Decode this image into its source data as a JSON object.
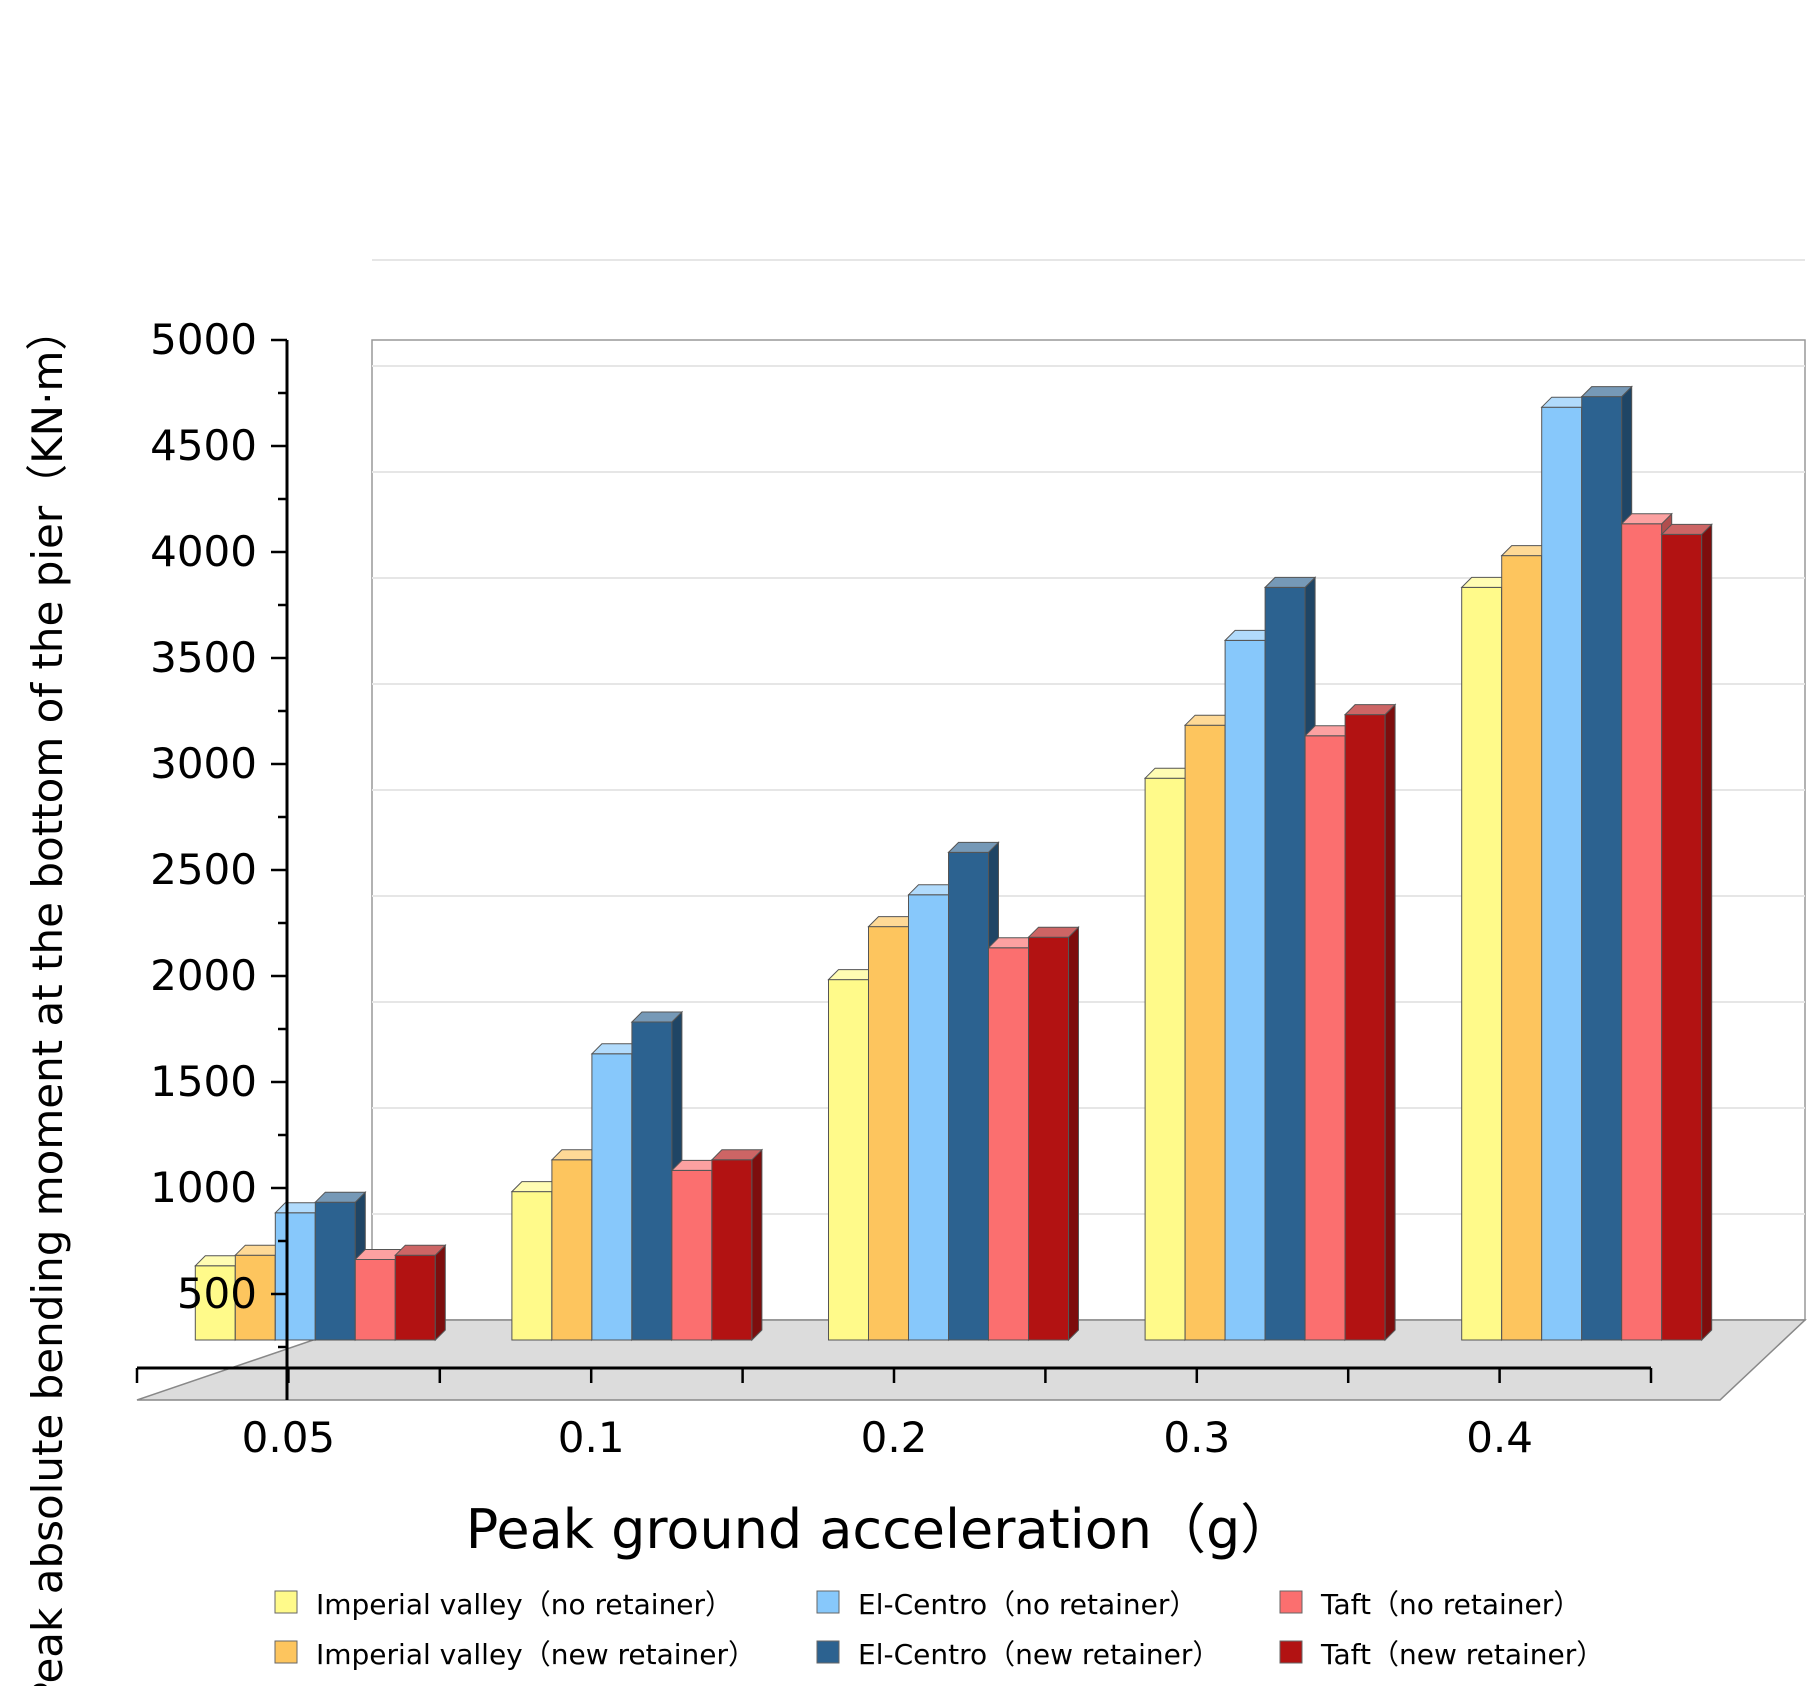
{
  "chart_data": {
    "type": "bar",
    "style": "3d-clustered",
    "title": "",
    "xlabel": "Peak ground acceleration（g）",
    "ylabel": "Peak absolute bending moment at the bottom of the pier（KN·m）",
    "categories": [
      "0.05",
      "0.1",
      "0.2",
      "0.3",
      "0.4"
    ],
    "ylim": [
      0,
      5000
    ],
    "yticks": [
      500,
      1000,
      1500,
      2000,
      2500,
      3000,
      3500,
      4000,
      4500,
      5000
    ],
    "grid": true,
    "legend_position": "bottom",
    "series": [
      {
        "name": "Imperial valley（no retainer）",
        "color": "#FFFA8A",
        "values": [
          350,
          700,
          1700,
          2650,
          3550
        ]
      },
      {
        "name": "Imperial valley（new retainer）",
        "color": "#FDC55E",
        "values": [
          400,
          850,
          1950,
          2900,
          3700
        ]
      },
      {
        "name": "El-Centro（no retainer）",
        "color": "#87C8FB",
        "values": [
          600,
          1350,
          2100,
          3300,
          4400
        ]
      },
      {
        "name": "El-Centro（new retainer）",
        "color": "#2C6290",
        "values": [
          650,
          1500,
          2300,
          3550,
          4450
        ]
      },
      {
        "name": "Taft（no retainer）",
        "color": "#FB6F6F",
        "values": [
          380,
          800,
          1850,
          2850,
          3850
        ]
      },
      {
        "name": "Taft（new retainer）",
        "color": "#B21212",
        "values": [
          400,
          850,
          1900,
          2950,
          3800
        ]
      }
    ]
  }
}
